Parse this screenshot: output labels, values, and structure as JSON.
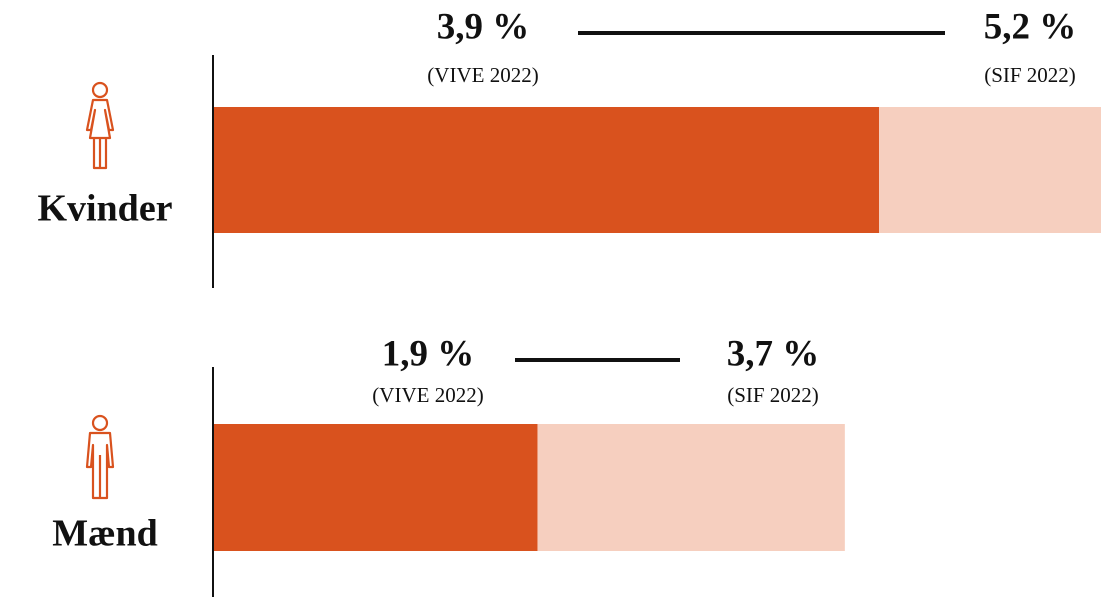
{
  "chart_data": {
    "type": "range-bar",
    "categories": [
      "Kvinder",
      "Mænd"
    ],
    "series": [
      {
        "name": "(VIVE 2022)",
        "color": "#d9521e",
        "values": [
          3.9,
          1.9
        ],
        "value_labels": [
          "3,9 %",
          "1,9 %"
        ]
      },
      {
        "name": "(SIF 2022)",
        "color": "#f6cfbf",
        "values": [
          5.2,
          3.7
        ],
        "value_labels": [
          "5,2 %",
          "3,7 %"
        ]
      }
    ],
    "xlim": [
      0,
      5.2
    ]
  }
}
